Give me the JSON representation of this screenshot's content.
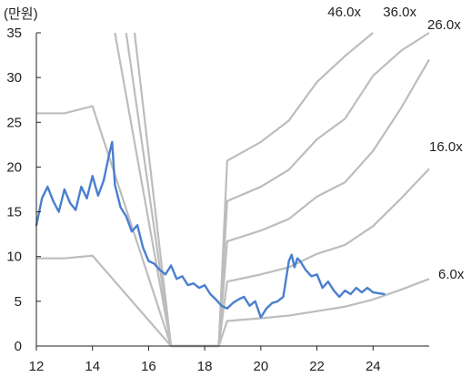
{
  "chart_data": {
    "type": "line",
    "unit_label": "(만원)",
    "xlim": [
      12,
      26
    ],
    "ylim": [
      0,
      35
    ],
    "x_ticks": [
      {
        "value": 12,
        "label": "12"
      },
      {
        "value": 14,
        "label": "14"
      },
      {
        "value": 16,
        "label": "16"
      },
      {
        "value": 18,
        "label": "18"
      },
      {
        "value": 20,
        "label": "20"
      },
      {
        "value": 22,
        "label": "22"
      },
      {
        "value": 24,
        "label": "24"
      }
    ],
    "y_ticks": [
      {
        "value": 0,
        "label": "0"
      },
      {
        "value": 5,
        "label": "5"
      },
      {
        "value": 10,
        "label": "10"
      },
      {
        "value": 15,
        "label": "15"
      },
      {
        "value": 20,
        "label": "20"
      },
      {
        "value": 25,
        "label": "25"
      },
      {
        "value": 30,
        "label": "30"
      },
      {
        "value": 35,
        "label": "35"
      }
    ],
    "colors": {
      "price": "#4a7fcf",
      "bands": "#bdbdbd",
      "axis": "#222222"
    },
    "bands": [
      {
        "label": "6.0x",
        "points": [
          [
            12,
            9.8
          ],
          [
            13,
            9.8
          ],
          [
            14,
            10.1
          ],
          [
            16.8,
            0
          ],
          [
            18.5,
            0
          ],
          [
            18.8,
            2.8
          ],
          [
            20,
            3.1
          ],
          [
            21,
            3.4
          ],
          [
            22,
            3.9
          ],
          [
            23,
            4.4
          ],
          [
            24,
            5.2
          ],
          [
            25,
            6.3
          ],
          [
            26,
            7.5
          ]
        ]
      },
      {
        "label": "16.0x",
        "points": [
          [
            12,
            26.0
          ],
          [
            13,
            26.0
          ],
          [
            14,
            26.8
          ],
          [
            16.8,
            0
          ],
          [
            18.5,
            0
          ],
          [
            18.8,
            7.2
          ],
          [
            20,
            8.0
          ],
          [
            21,
            8.8
          ],
          [
            22,
            10.3
          ],
          [
            23,
            11.3
          ],
          [
            24,
            13.4
          ],
          [
            25,
            16.5
          ],
          [
            26,
            19.8
          ]
        ]
      },
      {
        "label": "26.0x",
        "points": [
          [
            14.8,
            35
          ],
          [
            16.8,
            0
          ],
          [
            18.5,
            0
          ],
          [
            18.8,
            11.7
          ],
          [
            20,
            12.9
          ],
          [
            21,
            14.2
          ],
          [
            22,
            16.7
          ],
          [
            23,
            18.3
          ],
          [
            24,
            21.8
          ],
          [
            25,
            26.6
          ],
          [
            26,
            32.0
          ]
        ]
      },
      {
        "label": "36.0x",
        "points": [
          [
            15.2,
            35
          ],
          [
            16.8,
            0
          ],
          [
            18.5,
            0
          ],
          [
            18.8,
            16.2
          ],
          [
            20,
            17.8
          ],
          [
            21,
            19.7
          ],
          [
            22,
            23.1
          ],
          [
            23,
            25.4
          ],
          [
            24,
            30.2
          ],
          [
            25,
            33.0
          ],
          [
            26,
            35.0
          ]
        ]
      },
      {
        "label": "46.0x",
        "points": [
          [
            15.5,
            35
          ],
          [
            16.8,
            0
          ],
          [
            18.5,
            0
          ],
          [
            18.8,
            20.7
          ],
          [
            20,
            22.8
          ],
          [
            21,
            25.2
          ],
          [
            22,
            29.5
          ],
          [
            23,
            32.4
          ],
          [
            24,
            35.0
          ]
        ]
      }
    ],
    "price": {
      "x": [
        12.0,
        12.2,
        12.4,
        12.6,
        12.8,
        13.0,
        13.2,
        13.4,
        13.6,
        13.8,
        14.0,
        14.2,
        14.4,
        14.6,
        14.7,
        14.8,
        15.0,
        15.2,
        15.4,
        15.6,
        15.8,
        16.0,
        16.2,
        16.4,
        16.6,
        16.8,
        17.0,
        17.2,
        17.4,
        17.6,
        17.8,
        18.0,
        18.2,
        18.4,
        18.6,
        18.8,
        19.0,
        19.2,
        19.4,
        19.6,
        19.8,
        20.0,
        20.2,
        20.4,
        20.6,
        20.8,
        21.0,
        21.1,
        21.2,
        21.3,
        21.4,
        21.6,
        21.8,
        22.0,
        22.2,
        22.4,
        22.6,
        22.8,
        23.0,
        23.2,
        23.4,
        23.6,
        23.8,
        24.0,
        24.2,
        24.4
      ],
      "y": [
        13.5,
        16.5,
        17.8,
        16.2,
        15.0,
        17.5,
        16.0,
        15.2,
        17.8,
        16.5,
        19.0,
        16.8,
        18.5,
        21.5,
        22.8,
        18.0,
        15.5,
        14.5,
        12.8,
        13.5,
        11.0,
        9.5,
        9.2,
        8.5,
        8.0,
        9.0,
        7.5,
        7.8,
        6.8,
        7.0,
        6.5,
        6.8,
        5.8,
        5.2,
        4.5,
        4.2,
        4.8,
        5.2,
        5.5,
        4.5,
        5.0,
        3.2,
        4.2,
        4.8,
        5.0,
        5.5,
        9.5,
        10.2,
        8.8,
        9.8,
        9.5,
        8.5,
        7.8,
        8.0,
        6.5,
        7.2,
        6.2,
        5.5,
        6.2,
        5.8,
        6.5,
        6.0,
        6.5,
        6.0,
        5.9,
        5.8
      ]
    }
  }
}
